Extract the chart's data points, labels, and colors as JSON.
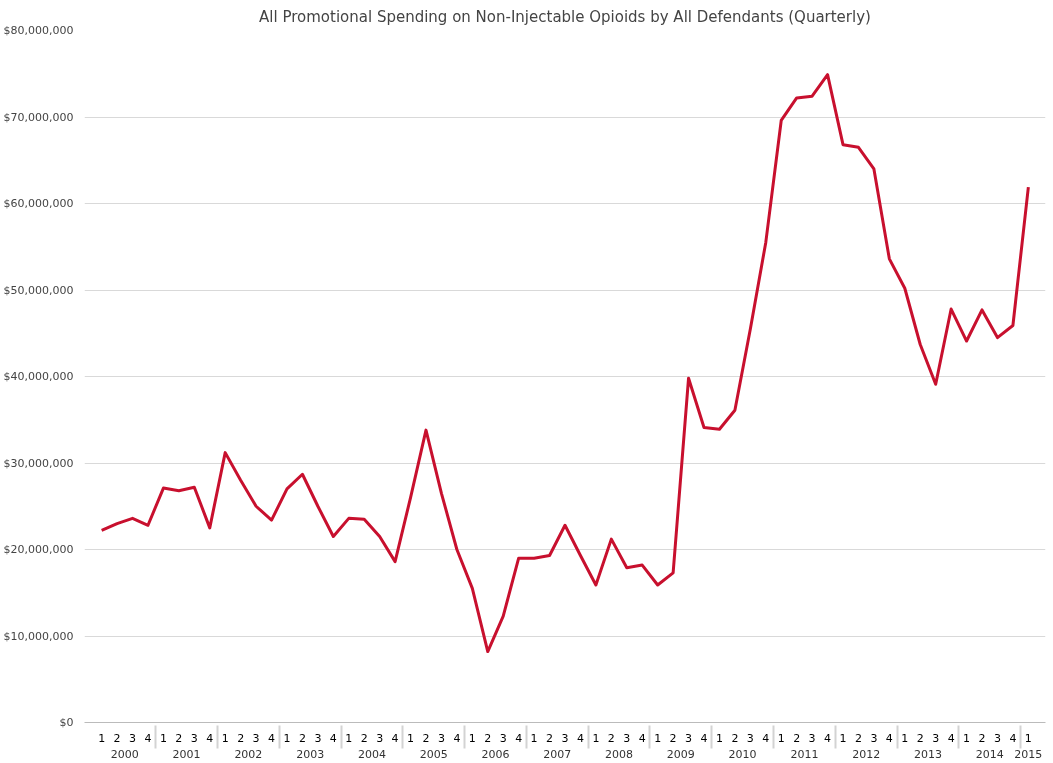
{
  "chart_data": {
    "type": "line",
    "title": "All Promotional Spending on Non-Injectable Opioids by All Defendants (Quarterly)",
    "categories": [
      "1",
      "2",
      "3",
      "4",
      "1",
      "2",
      "3",
      "4",
      "1",
      "2",
      "3",
      "4",
      "1",
      "2",
      "3",
      "4",
      "1",
      "2",
      "3",
      "4",
      "1",
      "2",
      "3",
      "4",
      "1",
      "2",
      "3",
      "4",
      "1",
      "2",
      "3",
      "4",
      "1",
      "2",
      "3",
      "4",
      "1",
      "2",
      "3",
      "4",
      "1",
      "2",
      "3",
      "4",
      "1",
      "2",
      "3",
      "4",
      "1",
      "2",
      "3",
      "4",
      "1",
      "2",
      "3",
      "4",
      "1",
      "2",
      "3",
      "4",
      "1"
    ],
    "annotations": [
      "2000",
      "2001",
      "2002",
      "2003",
      "2004",
      "2005",
      "2006",
      "2007",
      "2008",
      "2009",
      "2010",
      "2011",
      "2012",
      "2013",
      "2014",
      "2015"
    ],
    "series": [
      {
        "color": "#c8102e",
        "values": [
          22200000,
          23000000,
          23600000,
          22800000,
          27100000,
          26800000,
          27200000,
          22500000,
          31200000,
          28000000,
          25000000,
          23400000,
          27000000,
          28700000,
          25000000,
          21500000,
          23600000,
          23500000,
          21500000,
          18600000,
          26000000,
          33800000,
          26500000,
          20000000,
          15500000,
          8200000,
          12300000,
          19000000,
          19000000,
          19300000,
          22800000,
          19300000,
          15900000,
          21200000,
          17900000,
          18200000,
          15900000,
          17300000,
          39800000,
          34100000,
          33900000,
          36100000,
          45500000,
          55500000,
          69600000,
          72200000,
          72400000,
          74900000,
          66800000,
          66500000,
          64000000,
          53600000,
          50200000,
          43700000,
          39100000,
          47800000,
          44100000,
          47700000,
          44500000,
          45900000,
          61900000
        ]
      }
    ],
    "ylim": [
      0,
      80000000
    ],
    "yticks": [
      {
        "value": 0,
        "label": "$0"
      },
      {
        "value": 10000000,
        "label": "$10,000,000"
      },
      {
        "value": 20000000,
        "label": "$20,000,000"
      },
      {
        "value": 30000000,
        "label": "$30,000,000"
      },
      {
        "value": 40000000,
        "label": "$40,000,000"
      },
      {
        "value": 50000000,
        "label": "$50,000,000"
      },
      {
        "value": 60000000,
        "label": "$60,000,000"
      },
      {
        "value": 70000000,
        "label": "$70,000,000"
      },
      {
        "value": 80000000,
        "label": "$80,000,000"
      }
    ],
    "grid": "y",
    "marker": "none",
    "line_style": "solid"
  }
}
